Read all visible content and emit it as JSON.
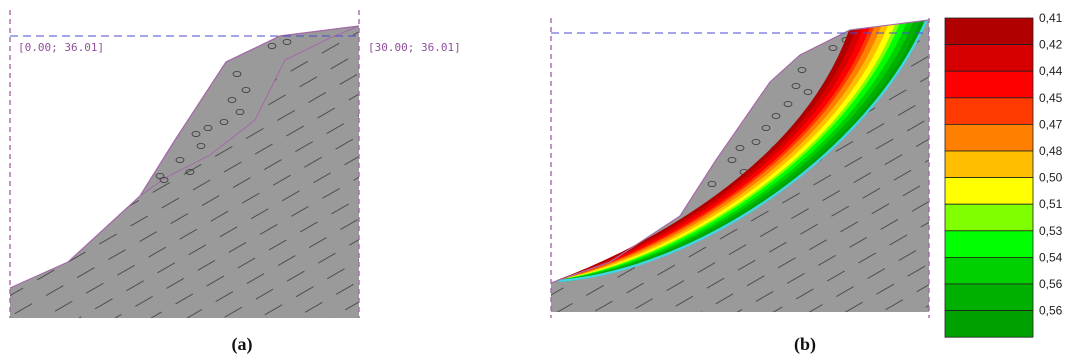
{
  "panel_a": {
    "caption": "(a)",
    "left_coord_label": "[0.00; 36.01]",
    "right_coord_label": "[30.00; 36.01]"
  },
  "panel_b": {
    "caption": "(b)"
  },
  "colors": {
    "soil": "#9a9a9a",
    "boundary": "#a46aa8",
    "hatch": "#555555",
    "dash_line": "#4b4bd0",
    "legend_border": "#222222",
    "cyan_surface": "#3fd6e6"
  },
  "legend": {
    "entries": [
      {
        "label": "0,41",
        "color": "#b00000"
      },
      {
        "label": "0,42",
        "color": "#d60000"
      },
      {
        "label": "0,44",
        "color": "#ff0000"
      },
      {
        "label": "0,45",
        "color": "#ff3a00"
      },
      {
        "label": "0,47",
        "color": "#ff8000"
      },
      {
        "label": "0,48",
        "color": "#ffbf00"
      },
      {
        "label": "0,50",
        "color": "#ffff00"
      },
      {
        "label": "0,51",
        "color": "#80ff00"
      },
      {
        "label": "0,53",
        "color": "#00ff00"
      },
      {
        "label": "0,54",
        "color": "#00d000"
      },
      {
        "label": "0,56",
        "color": "#00b000"
      },
      {
        "label": "0,56",
        "color": "#00a000"
      }
    ]
  }
}
